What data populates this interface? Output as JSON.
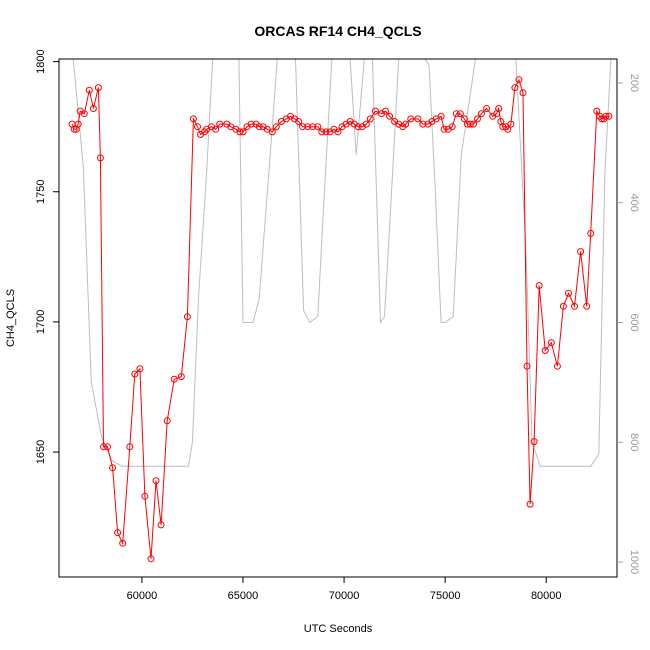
{
  "chart_data": {
    "type": "line",
    "title": "ORCAS RF14 CH4_QCLS",
    "xlabel": "UTC Seconds",
    "ylabel": "CH4_QCLS",
    "xlim": [
      55900,
      83500
    ],
    "ylim": [
      1602,
      1801
    ],
    "y2lim": [
      1025,
      160
    ],
    "y2_reversed": true,
    "grid": false,
    "legend": "none",
    "x_ticks": [
      60000,
      65000,
      70000,
      75000,
      80000
    ],
    "y_ticks": [
      1650,
      1700,
      1750,
      1800
    ],
    "y2_ticks": [
      200,
      400,
      600,
      800,
      1000
    ],
    "colors": {
      "primary": "#ff0000",
      "secondary": "#bebebe",
      "axis": "#000000",
      "right_axis": "#a0a0a0"
    },
    "series": [
      {
        "role": "primary",
        "axis": "left",
        "marker": "open-circle",
        "x": [
          56550,
          56650,
          56750,
          56850,
          56950,
          57150,
          57400,
          57600,
          57850,
          57950,
          58100,
          58300,
          58550,
          58800,
          59050,
          59400,
          59650,
          59900,
          60150,
          60450,
          60700,
          60950,
          61250,
          61600,
          61950,
          62250,
          62550,
          62750,
          62900,
          63100,
          63200,
          63450,
          63650,
          63850,
          64200,
          64400,
          64650,
          64850,
          65000,
          65200,
          65400,
          65650,
          65800,
          66000,
          66200,
          66450,
          66650,
          66900,
          67150,
          67350,
          67550,
          67750,
          67950,
          68200,
          68450,
          68700,
          68900,
          69100,
          69300,
          69500,
          69700,
          69900,
          70100,
          70300,
          70500,
          70700,
          70900,
          71100,
          71300,
          71550,
          71850,
          72050,
          72250,
          72500,
          72700,
          72900,
          73050,
          73300,
          73650,
          73900,
          74150,
          74350,
          74550,
          74800,
          74950,
          75150,
          75350,
          75550,
          75750,
          75950,
          76100,
          76250,
          76400,
          76600,
          76800,
          77050,
          77350,
          77550,
          77650,
          77750,
          77850,
          78000,
          78100,
          78250,
          78450,
          78650,
          78850,
          79050,
          79200,
          79400,
          79650,
          79950,
          80250,
          80550,
          80850,
          81100,
          81400,
          81700,
          82000,
          82200,
          82500,
          82650,
          82750,
          82850,
          82950,
          83100
        ],
        "y": [
          1776,
          1774,
          1774,
          1776,
          1781,
          1780,
          1789,
          1782,
          1790,
          1763,
          1652,
          1652,
          1644,
          1619,
          1615,
          1652,
          1680,
          1682,
          1633,
          1609,
          1639,
          1622,
          1662,
          1678,
          1679,
          1702,
          1778,
          1775,
          1772,
          1773,
          1774,
          1775,
          1774,
          1776,
          1776,
          1775,
          1774,
          1773,
          1773,
          1775,
          1776,
          1776,
          1775,
          1775,
          1774,
          1773,
          1775,
          1777,
          1778,
          1779,
          1778,
          1777,
          1775,
          1775,
          1775,
          1775,
          1773,
          1773,
          1773,
          1774,
          1773,
          1775,
          1776,
          1777,
          1776,
          1775,
          1775,
          1776,
          1778,
          1781,
          1780,
          1781,
          1779,
          1777,
          1776,
          1775,
          1776,
          1778,
          1778,
          1776,
          1776,
          1777,
          1778,
          1779,
          1774,
          1774,
          1775,
          1780,
          1780,
          1778,
          1776,
          1776,
          1776,
          1778,
          1780,
          1782,
          1779,
          1780,
          1782,
          1777,
          1775,
          1775,
          1774,
          1776,
          1790,
          1793,
          1788,
          1683,
          1630,
          1654,
          1714,
          1689,
          1692,
          1683,
          1706,
          1711,
          1706,
          1727,
          1706,
          1734,
          1781,
          1779,
          1778,
          1778,
          1779,
          1779
        ]
      },
      {
        "role": "secondary",
        "axis": "right",
        "x": [
          56600,
          57100,
          57500,
          58000,
          58500,
          59000,
          61000,
          62000,
          62300,
          62500,
          62800,
          63200,
          63500,
          63800,
          64400,
          64800,
          65000,
          65500,
          65800,
          66300,
          66700,
          67200,
          67600,
          68000,
          68300,
          68700,
          69000,
          69400,
          69800,
          70300,
          70600,
          71000,
          71400,
          71800,
          72000,
          72400,
          72700,
          73000,
          73400,
          74000,
          74200,
          74500,
          74800,
          75000,
          75400,
          75800,
          76500,
          77000,
          77500,
          78000,
          78500,
          79000,
          79300,
          79700,
          80000,
          80500,
          81000,
          81500,
          82000,
          82200,
          82600,
          82900,
          83200
        ],
        "y": [
          160,
          340,
          700,
          790,
          830,
          840,
          840,
          840,
          840,
          800,
          560,
          350,
          160,
          160,
          160,
          160,
          600,
          600,
          560,
          340,
          160,
          160,
          160,
          580,
          600,
          590,
          400,
          160,
          160,
          160,
          320,
          160,
          160,
          600,
          590,
          350,
          160,
          160,
          160,
          160,
          170,
          370,
          600,
          600,
          590,
          320,
          160,
          160,
          160,
          160,
          160,
          480,
          800,
          840,
          840,
          840,
          840,
          840,
          840,
          840,
          820,
          350,
          160
        ]
      }
    ]
  }
}
